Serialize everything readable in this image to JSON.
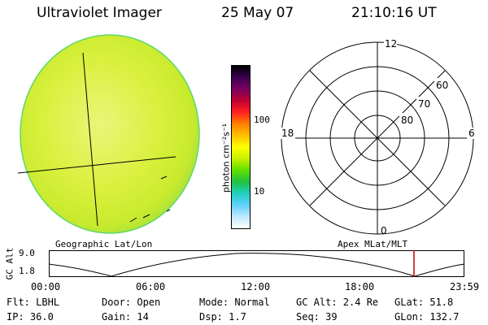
{
  "header": {
    "instrument": "Ultraviolet Imager",
    "date": "25 May 07",
    "time": "21:10:16 UT"
  },
  "image_panel": {
    "disk_color": "#d9f03c",
    "background": "#ffffff"
  },
  "colorbar": {
    "label": "photon cm⁻²s⁻¹",
    "ticks": [
      "100",
      "10"
    ],
    "colors": [
      "#000000",
      "#3a0050",
      "#7a0060",
      "#c00030",
      "#ff2020",
      "#ff8000",
      "#ffc000",
      "#ffff00",
      "#c8f000",
      "#60e000",
      "#20c040",
      "#20d0c0",
      "#60d0ff",
      "#c0e8ff",
      "#ffffff"
    ]
  },
  "polar_plot": {
    "mlt_labels": {
      "top": "12",
      "left": "18",
      "right": "6",
      "bottom": "0"
    },
    "mlat_labels": [
      "60",
      "70",
      "80"
    ]
  },
  "altitude_plot": {
    "left_title": "Geographic Lat/Lon",
    "right_title": "Apex MLat/MLT",
    "ylabel": "GC Alt",
    "y_ticks": [
      "9.0",
      "1.8"
    ],
    "x_ticks": [
      "00:00",
      "06:00",
      "12:00",
      "18:00",
      "23:59"
    ],
    "marker_color": "#c00000"
  },
  "status": {
    "row1": {
      "filter": "Flt: LBHL",
      "door": "Door: Open",
      "mode": "Mode: Normal",
      "gc_alt": "GC Alt: 2.4 Re",
      "glat": "GLat:  51.8"
    },
    "row2": {
      "ip": "IP: 36.0",
      "gain": "Gain: 14",
      "dsp": "Dsp:    1.7",
      "seq": "Seq: 39",
      "glon": "GLon: 132.7"
    }
  }
}
